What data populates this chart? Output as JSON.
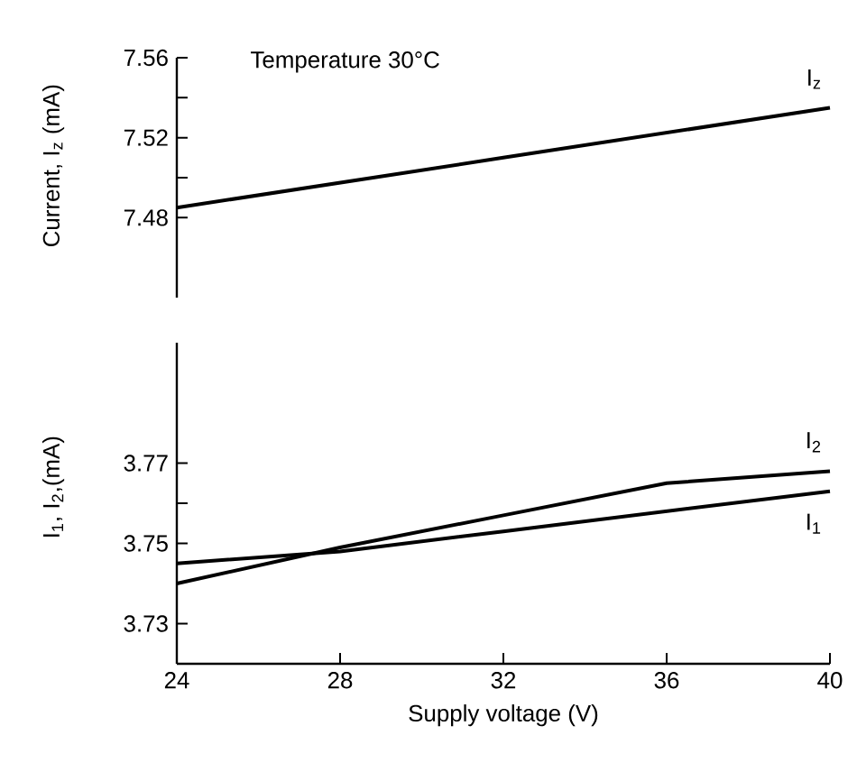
{
  "chart_data": [
    {
      "type": "line",
      "title": "Temperature 30°C",
      "ylabel": "Current, I$_{z}$ (mA)",
      "x": [
        24,
        32,
        40
      ],
      "xlim": [
        24,
        40
      ],
      "xticks": [
        24,
        28,
        32,
        36,
        40
      ],
      "ylim": [
        7.44,
        7.56
      ],
      "yticks": [
        7.48,
        {
          "value": 7.5,
          "label": null
        },
        7.52,
        {
          "value": 7.54,
          "label": null
        },
        7.56
      ],
      "tick_labels": "y",
      "series": [
        {
          "name": "I$_{z}$",
          "color": "#000000",
          "values": [
            7.485,
            7.51,
            7.535
          ]
        }
      ]
    },
    {
      "type": "line",
      "xlabel": "Supply voltage (V)",
      "ylabel": "I$_{1}$, I$_{2}$,(mA)",
      "x": [
        24,
        28,
        32,
        36,
        40
      ],
      "xlim": [
        24,
        40
      ],
      "xticks": [
        24,
        28,
        32,
        36,
        40
      ],
      "ylim": [
        3.72,
        3.8
      ],
      "yticks": [
        3.73,
        3.75,
        {
          "value": 3.76,
          "label": null
        },
        3.77
      ],
      "series": [
        {
          "name": "I$_{1}$",
          "color": "#000000",
          "values": [
            3.745,
            3.748,
            3.753,
            3.758,
            3.763
          ]
        },
        {
          "name": "I$_{2}$",
          "color": "#000000",
          "values": [
            3.74,
            3.749,
            3.757,
            3.765,
            3.768
          ]
        }
      ]
    }
  ]
}
